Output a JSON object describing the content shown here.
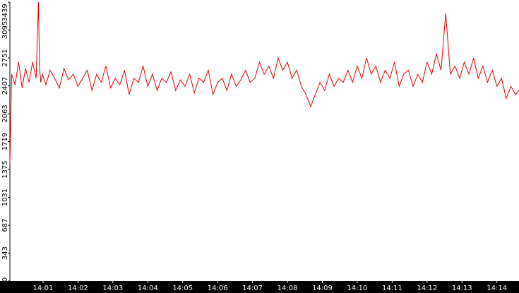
{
  "chart_data": {
    "type": "line",
    "title": "",
    "xlabel": "",
    "ylabel": "",
    "ylim": [
      0,
      3439
    ],
    "y_ticks": [
      "0",
      "343",
      "687",
      "1031",
      "1375",
      "1719",
      "2063",
      "2407",
      "2751",
      "3095",
      "3439"
    ],
    "x_ticks": [
      "14:01",
      "14:02",
      "14:03",
      "14:04",
      "14:05",
      "14:06",
      "14:07",
      "14:08",
      "14:09",
      "14:10",
      "14:11",
      "14:12",
      "14:13",
      "14:14"
    ],
    "x_range": [
      "14:00:03",
      "14:14:38"
    ],
    "grid": false,
    "series": [
      {
        "color": "#e00000",
        "x": [
          "14:00:03",
          "14:00:06",
          "14:00:12",
          "14:00:18",
          "14:00:24",
          "14:00:30",
          "14:00:36",
          "14:00:42",
          "14:00:48",
          "14:00:52",
          "14:00:54",
          "14:00:56",
          "14:00:59",
          "14:01:05",
          "14:01:12",
          "14:01:20",
          "14:01:28",
          "14:01:36",
          "14:01:44",
          "14:01:52",
          "14:02:00",
          "14:02:08",
          "14:02:16",
          "14:02:24",
          "14:02:32",
          "14:02:40",
          "14:02:48",
          "14:02:56",
          "14:03:04",
          "14:03:12",
          "14:03:20",
          "14:03:28",
          "14:03:36",
          "14:03:44",
          "14:03:52",
          "14:04:00",
          "14:04:08",
          "14:04:16",
          "14:04:24",
          "14:04:32",
          "14:04:40",
          "14:04:48",
          "14:04:56",
          "14:05:04",
          "14:05:12",
          "14:05:20",
          "14:05:28",
          "14:05:36",
          "14:05:44",
          "14:05:52",
          "14:06:00",
          "14:06:08",
          "14:06:16",
          "14:06:24",
          "14:06:32",
          "14:06:40",
          "14:06:48",
          "14:06:56",
          "14:07:04",
          "14:07:12",
          "14:07:20",
          "14:07:28",
          "14:07:36",
          "14:07:44",
          "14:07:52",
          "14:08:00",
          "14:08:08",
          "14:08:16",
          "14:08:24",
          "14:08:32",
          "14:08:40",
          "14:08:48",
          "14:08:56",
          "14:09:04",
          "14:09:12",
          "14:09:20",
          "14:09:28",
          "14:09:36",
          "14:09:44",
          "14:09:52",
          "14:10:00",
          "14:10:08",
          "14:10:16",
          "14:10:24",
          "14:10:32",
          "14:10:40",
          "14:10:48",
          "14:10:56",
          "14:11:04",
          "14:11:12",
          "14:11:20",
          "14:11:28",
          "14:11:36",
          "14:11:44",
          "14:11:52",
          "14:12:00",
          "14:12:08",
          "14:12:16",
          "14:12:24",
          "14:12:32",
          "14:12:40",
          "14:12:48",
          "14:12:56",
          "14:13:04",
          "14:13:12",
          "14:13:20",
          "14:13:28",
          "14:13:36",
          "14:13:44",
          "14:13:52",
          "14:14:00",
          "14:14:08",
          "14:14:16",
          "14:14:24",
          "14:14:32",
          "14:14:38"
        ],
        "y": [
          1450,
          2550,
          2420,
          2700,
          2380,
          2620,
          2450,
          2700,
          2500,
          3439,
          2650,
          2450,
          2550,
          2420,
          2600,
          2500,
          2380,
          2620,
          2480,
          2550,
          2400,
          2500,
          2600,
          2350,
          2550,
          2450,
          2650,
          2380,
          2500,
          2420,
          2600,
          2300,
          2500,
          2450,
          2650,
          2400,
          2550,
          2350,
          2500,
          2450,
          2580,
          2350,
          2480,
          2400,
          2550,
          2320,
          2500,
          2450,
          2600,
          2300,
          2450,
          2500,
          2350,
          2550,
          2400,
          2480,
          2600,
          2450,
          2500,
          2700,
          2550,
          2650,
          2500,
          2750,
          2600,
          2700,
          2500,
          2600,
          2400,
          2300,
          2150,
          2300,
          2450,
          2350,
          2550,
          2400,
          2500,
          2450,
          2600,
          2450,
          2650,
          2500,
          2750,
          2550,
          2650,
          2450,
          2600,
          2500,
          2700,
          2400,
          2550,
          2600,
          2400,
          2550,
          2450,
          2700,
          2550,
          2800,
          2600,
          3300,
          2550,
          2650,
          2500,
          2700,
          2550,
          2750,
          2500,
          2650,
          2450,
          2600,
          2400,
          2500,
          2250,
          2400,
          2300,
          2350
        ]
      }
    ]
  }
}
